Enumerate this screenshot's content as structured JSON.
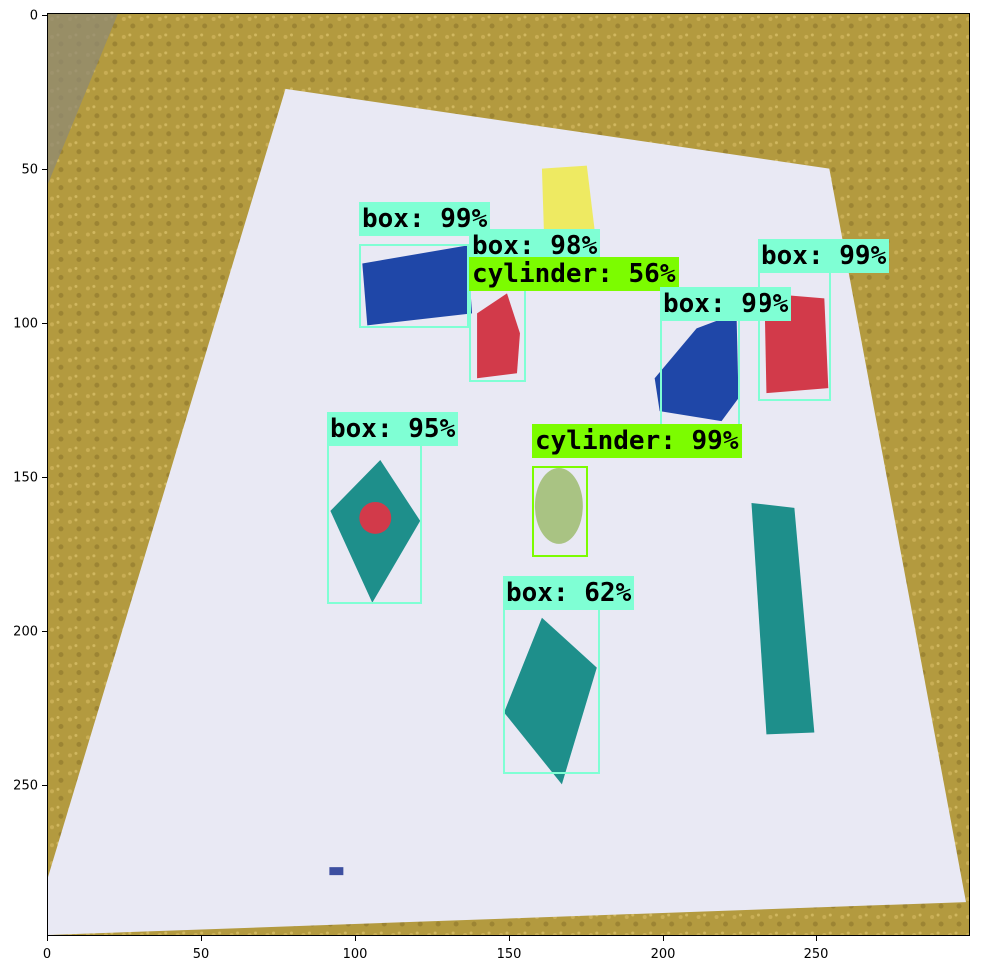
{
  "image": {
    "description_colors": {
      "floor": "#b59a3c",
      "paper": "#e9e9f3",
      "box_outline": "#7fffd4",
      "cylinder_outline": "#7cfc00",
      "blue_block": "#1f47a8",
      "red_block": "#d23a4a",
      "yellow_block": "#eeea62",
      "teal_block": "#1e8f8b",
      "cylinder_obj": "#a9c383"
    }
  },
  "axes": {
    "x_ticks": [
      "0",
      "50",
      "100",
      "150",
      "200",
      "250"
    ],
    "y_ticks": [
      "0",
      "50",
      "100",
      "150",
      "200",
      "250"
    ]
  },
  "detections": [
    {
      "label": "box: 99%",
      "class": "box"
    },
    {
      "label": "box: 98%",
      "class": "box"
    },
    {
      "label": "cylinder: 56%",
      "class": "cylinder"
    },
    {
      "label": "box: 99%",
      "class": "box"
    },
    {
      "label": "box: 99%",
      "class": "box"
    },
    {
      "label": "box: 95%",
      "class": "box"
    },
    {
      "label": "cylinder: 99%",
      "class": "cylinder"
    },
    {
      "label": "box: 62%",
      "class": "box"
    }
  ]
}
